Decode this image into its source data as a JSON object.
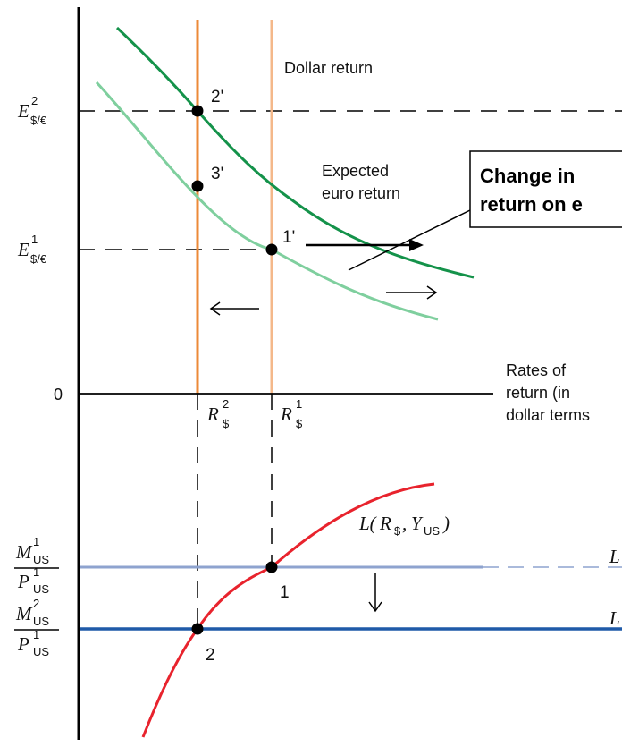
{
  "labels": {
    "dollar_return": "Dollar return",
    "expected_line1": "Expected",
    "expected_line2": "euro return",
    "callout_line1": "Change in",
    "callout_line2": "return on e",
    "rates_line1": "Rates of",
    "rates_line2": "return (in",
    "rates_line3": "dollar terms",
    "zero": "0",
    "point_2p": "2'",
    "point_3p": "3'",
    "point_1p": "1'",
    "point_1": "1",
    "point_2": "2"
  },
  "symbols": {
    "E": "E",
    "E_sub": "$/€",
    "E_sup1": "1",
    "E_sup2": "2",
    "R": "R",
    "R_sub": "$",
    "R_sup1": "1",
    "R_sup2": "2",
    "L_pre": "L(",
    "L_mid": ",",
    "L_Y": "Y",
    "L_Ysub": "US",
    "L_post": ")",
    "M": "M",
    "P": "P",
    "US": "US",
    "sup1": "1",
    "sup2": "2"
  },
  "colors": {
    "dollar_return_1": "#f4b88a",
    "dollar_return_2": "#ec8a38",
    "expected_return_old": "#7fcf9e",
    "expected_return_new": "#14924a",
    "money_supply_1": "#8ea3cf",
    "money_supply_2": "#1f5aa8",
    "money_demand": "#e8232d",
    "axis": "#000000"
  }
}
